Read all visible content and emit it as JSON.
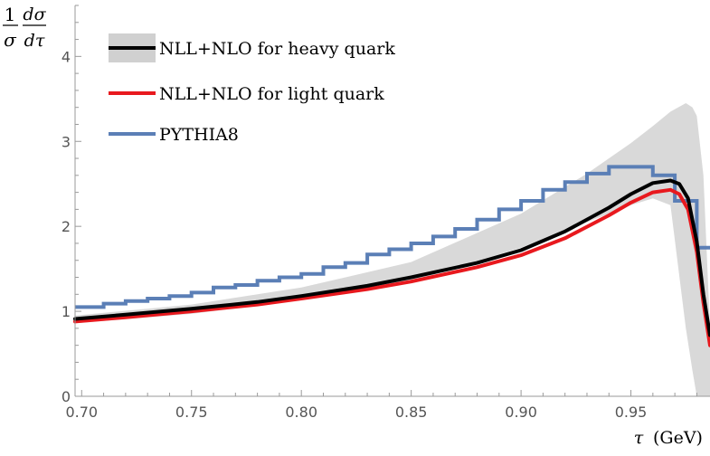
{
  "chart_data": {
    "type": "line",
    "title": "",
    "xlabel": "τ (GeV)",
    "ylabel": "1/σ dσ/dτ",
    "ylabel_parts": {
      "num_left": "1",
      "den_left": "σ",
      "num_right": "dσ",
      "den_right": "dτ"
    },
    "xlabel_parts": {
      "symbol": "τ",
      "unit": "(GeV)"
    },
    "xlim": [
      0.697,
      0.986
    ],
    "ylim": [
      0,
      4.6
    ],
    "x_ticks": [
      0.7,
      0.75,
      0.8,
      0.85,
      0.9,
      0.95
    ],
    "x_tick_labels": [
      "0.70",
      "0.75",
      "0.80",
      "0.85",
      "0.90",
      "0.95"
    ],
    "y_ticks": [
      0,
      1,
      2,
      3,
      4
    ],
    "y_tick_labels": [
      "0",
      "1",
      "2",
      "3",
      "4"
    ],
    "legend_position": "top-left",
    "band": {
      "name": "NLL+NLO for heavy quark (uncertainty)",
      "color": "#d9d9d9",
      "points": [
        {
          "x": 0.697,
          "lo": 0.86,
          "hi": 0.95
        },
        {
          "x": 0.75,
          "lo": 0.97,
          "hi": 1.08
        },
        {
          "x": 0.8,
          "lo": 1.13,
          "hi": 1.28
        },
        {
          "x": 0.85,
          "lo": 1.35,
          "hi": 1.58
        },
        {
          "x": 0.9,
          "lo": 1.75,
          "hi": 2.15
        },
        {
          "x": 0.93,
          "lo": 2.05,
          "hi": 2.62
        },
        {
          "x": 0.95,
          "lo": 2.25,
          "hi": 2.98
        },
        {
          "x": 0.96,
          "lo": 2.33,
          "hi": 3.18
        },
        {
          "x": 0.968,
          "lo": 2.25,
          "hi": 3.35
        },
        {
          "x": 0.975,
          "lo": 0.8,
          "hi": 3.45
        },
        {
          "x": 0.978,
          "lo": 0.3,
          "hi": 3.4
        },
        {
          "x": 0.98,
          "lo": 0.0,
          "hi": 3.3
        },
        {
          "x": 0.983,
          "lo": 0.0,
          "hi": 2.6
        },
        {
          "x": 0.986,
          "lo": 0.0,
          "hi": 0.8
        }
      ]
    },
    "series": [
      {
        "name": "NLL+NLO for light quark",
        "color": "#e8191e",
        "x": [
          0.697,
          0.72,
          0.75,
          0.78,
          0.8,
          0.83,
          0.85,
          0.88,
          0.9,
          0.92,
          0.94,
          0.95,
          0.96,
          0.968,
          0.972,
          0.976,
          0.98,
          0.983,
          0.986
        ],
        "values": [
          0.88,
          0.93,
          1.0,
          1.08,
          1.15,
          1.26,
          1.35,
          1.52,
          1.66,
          1.86,
          2.13,
          2.28,
          2.4,
          2.43,
          2.38,
          2.2,
          1.7,
          1.1,
          0.6
        ]
      },
      {
        "name": "NLL+NLO for heavy quark",
        "color": "#000000",
        "x": [
          0.697,
          0.72,
          0.75,
          0.78,
          0.8,
          0.83,
          0.85,
          0.88,
          0.9,
          0.92,
          0.94,
          0.95,
          0.96,
          0.968,
          0.972,
          0.976,
          0.98,
          0.983,
          0.986
        ],
        "values": [
          0.91,
          0.96,
          1.03,
          1.11,
          1.18,
          1.3,
          1.4,
          1.57,
          1.72,
          1.94,
          2.22,
          2.38,
          2.51,
          2.54,
          2.5,
          2.33,
          1.82,
          1.2,
          0.72
        ]
      }
    ],
    "histogram": {
      "name": "PYTHIA8",
      "color": "#5b7fb6",
      "edges": [
        0.697,
        0.71,
        0.72,
        0.73,
        0.74,
        0.75,
        0.76,
        0.77,
        0.78,
        0.79,
        0.8,
        0.81,
        0.82,
        0.83,
        0.84,
        0.85,
        0.86,
        0.87,
        0.88,
        0.89,
        0.9,
        0.91,
        0.92,
        0.93,
        0.94,
        0.95,
        0.96,
        0.97,
        0.98,
        0.986
      ],
      "values": [
        1.05,
        1.09,
        1.12,
        1.15,
        1.18,
        1.22,
        1.28,
        1.31,
        1.36,
        1.4,
        1.44,
        1.52,
        1.57,
        1.67,
        1.73,
        1.8,
        1.88,
        1.97,
        2.08,
        2.2,
        2.3,
        2.43,
        2.52,
        2.62,
        2.7,
        2.7,
        2.6,
        2.3,
        1.75
      ]
    },
    "legend": [
      {
        "label": "NLL+NLO for heavy quark",
        "color": "#000000",
        "band_color": "#d0d0d0"
      },
      {
        "label": "NLL+NLO for light quark",
        "color": "#e8191e"
      },
      {
        "label": "PYTHIA8",
        "color": "#5b7fb6"
      }
    ],
    "axis_color": "#9a9a9a"
  }
}
